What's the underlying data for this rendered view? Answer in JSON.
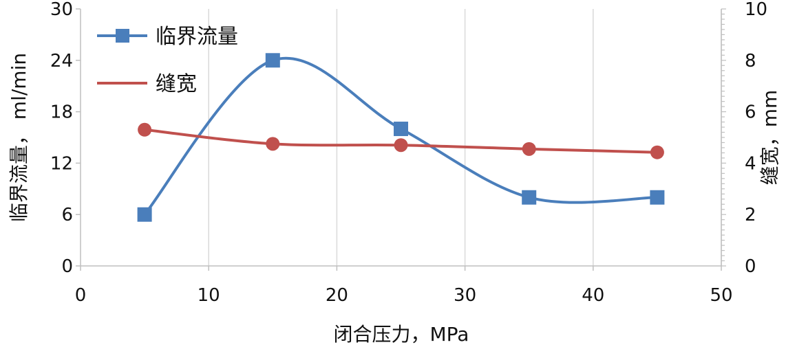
{
  "chart_data": {
    "type": "line",
    "xlabel": "闭合压力，MPa",
    "ylabel_left": "临界流量， ml/min",
    "ylabel_right": "缝宽，mm",
    "xlim": [
      0,
      50
    ],
    "ylim_left": [
      0,
      30
    ],
    "ylim_right": [
      0,
      10
    ],
    "xticks": [
      "0",
      "10",
      "20",
      "30",
      "40",
      "50"
    ],
    "yticks_left": [
      "0",
      "6",
      "12",
      "18",
      "24",
      "30"
    ],
    "yticks_right": [
      "0",
      "2",
      "4",
      "6",
      "8",
      "10"
    ],
    "grid": "vertical",
    "legend_position": "top-left",
    "series": [
      {
        "name": "临界流量",
        "axis": "left",
        "color": "#4a7ebb",
        "marker": "square",
        "smooth": true,
        "x": [
          5,
          15,
          25,
          35,
          45
        ],
        "y": [
          6,
          24,
          16,
          8,
          8
        ]
      },
      {
        "name": "缝宽",
        "axis": "right",
        "color": "#c0504d",
        "marker": "circle",
        "smooth": true,
        "x": [
          5,
          15,
          25,
          35,
          45
        ],
        "y": [
          5.3,
          4.75,
          4.7,
          4.55,
          4.42
        ]
      }
    ]
  }
}
